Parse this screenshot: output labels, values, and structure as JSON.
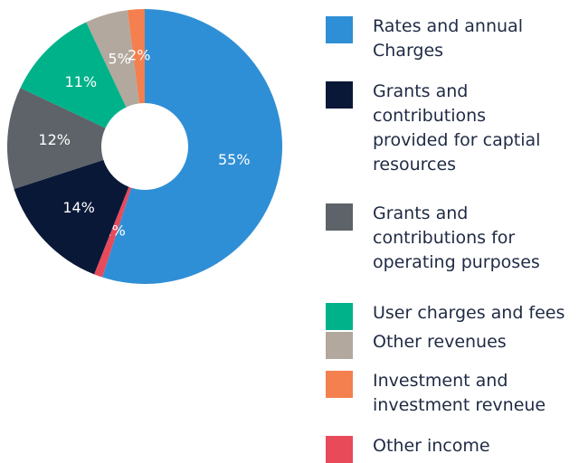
{
  "chart_data": {
    "type": "pie",
    "categories": [
      "Rates and annual\nCharges",
      "Other income",
      "Grants and\ncontributions\nprovided for captial\nresources",
      "Grants and\ncontributions for\noperating purposes",
      "User charges and fees",
      "Other revenues",
      "Investment and\ninvestment revneue"
    ],
    "values": [
      55,
      1,
      14,
      12,
      11,
      5,
      2
    ],
    "value_labels": [
      "55%",
      "1%",
      "14%",
      "12%",
      "11%",
      "5%",
      "2%"
    ],
    "colors": [
      "#2f8fd6",
      "#e84a5a",
      "#0a1838",
      "#5d6369",
      "#00b28a",
      "#b3a89e",
      "#f47f4f"
    ]
  }
}
